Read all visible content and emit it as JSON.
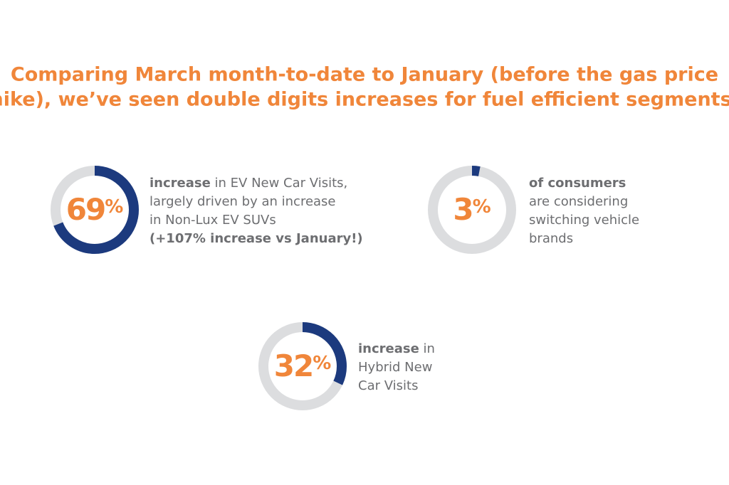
{
  "title": [
    "Comparing March month-to-date to January (before the gas price",
    "hike), we’ve seen double digits increases for fuel efficient segments:"
  ],
  "chart_data": [
    {
      "type": "donut",
      "value": 69,
      "value_label": "69%",
      "color": "#1c3a7e",
      "track_color": "#dcdddf",
      "lines": [
        [
          {
            "text": "increase",
            "bold": true
          },
          {
            "text": " in EV New Car Visits,"
          }
        ],
        [
          {
            "text": "largely driven by an increase"
          }
        ],
        [
          {
            "text": "in Non-Lux EV SUVs"
          }
        ],
        [
          {
            "text": "(+107% increase vs January!)",
            "bold": true
          }
        ]
      ]
    },
    {
      "type": "donut",
      "value": 3,
      "value_label": "3%",
      "color": "#1c3a7e",
      "track_color": "#dcdddf",
      "lines": [
        [
          {
            "text": "of consumers",
            "bold": true
          }
        ],
        [
          {
            "text": "are considering"
          }
        ],
        [
          {
            "text": "switching vehicle"
          }
        ],
        [
          {
            "text": "brands"
          }
        ]
      ]
    },
    {
      "type": "donut",
      "value": 32,
      "value_label": "32%",
      "color": "#1c3a7e",
      "track_color": "#dcdddf",
      "lines": [
        [
          {
            "text": "increase",
            "bold": true
          },
          {
            "text": " in"
          }
        ],
        [
          {
            "text": "Hybrid New"
          }
        ],
        [
          {
            "text": "Car Visits"
          }
        ]
      ]
    }
  ]
}
